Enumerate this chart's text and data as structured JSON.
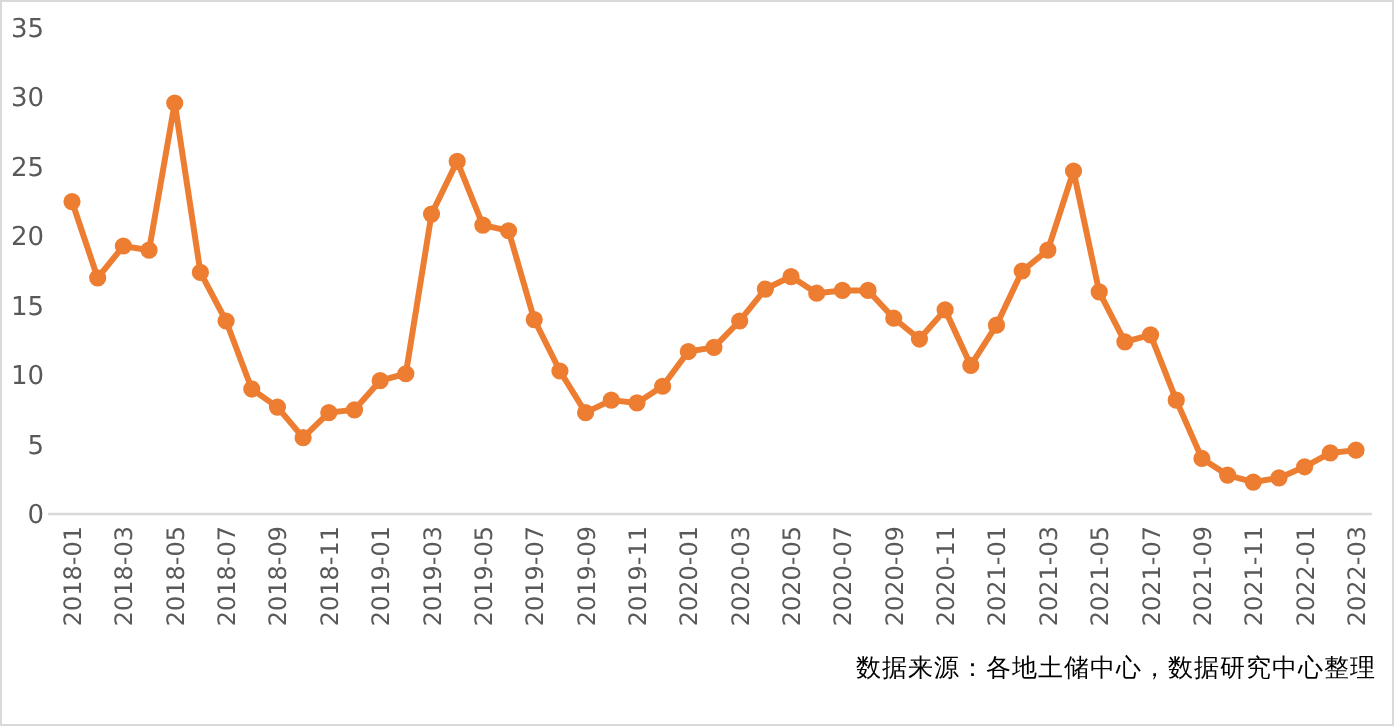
{
  "chart_data": {
    "type": "line",
    "categories": [
      "2018-01",
      null,
      "2018-03",
      null,
      "2018-05",
      null,
      "2018-07",
      null,
      "2018-09",
      null,
      "2018-11",
      null,
      "2019-01",
      null,
      "2019-03",
      null,
      "2019-05",
      null,
      "2019-07",
      null,
      "2019-09",
      null,
      "2019-11",
      null,
      "2020-01",
      null,
      "2020-03",
      null,
      "2020-05",
      null,
      "2020-07",
      null,
      "2020-09",
      null,
      "2020-11",
      null,
      "2021-01",
      null,
      "2021-03",
      null,
      "2021-05",
      null,
      "2021-07",
      null,
      "2021-09",
      null,
      "2021-11",
      null,
      "2022-01",
      null,
      "2022-03"
    ],
    "series": [
      {
        "color": "#ed7d31",
        "values": [
          22.5,
          17.0,
          19.3,
          19.0,
          29.6,
          17.4,
          13.9,
          9.0,
          7.7,
          5.5,
          7.3,
          7.5,
          9.6,
          10.1,
          21.6,
          25.4,
          20.8,
          20.4,
          14.0,
          10.3,
          7.3,
          8.2,
          8.0,
          9.2,
          11.7,
          12.0,
          13.9,
          16.2,
          17.1,
          15.9,
          16.1,
          16.1,
          14.1,
          12.6,
          14.7,
          10.7,
          13.6,
          17.5,
          19.0,
          24.7,
          16.0,
          12.4,
          12.9,
          8.2,
          4.0,
          2.8,
          2.3,
          2.6,
          3.4,
          4.4,
          4.6
        ]
      }
    ],
    "ylim": [
      0,
      35
    ],
    "yticks": [
      0,
      5,
      10,
      15,
      20,
      25,
      30,
      35
    ],
    "grid": false,
    "marker": "circle",
    "line_style": "solid",
    "annotations": [
      "数据来源：各地土储中心，数据研究中心整理"
    ]
  }
}
